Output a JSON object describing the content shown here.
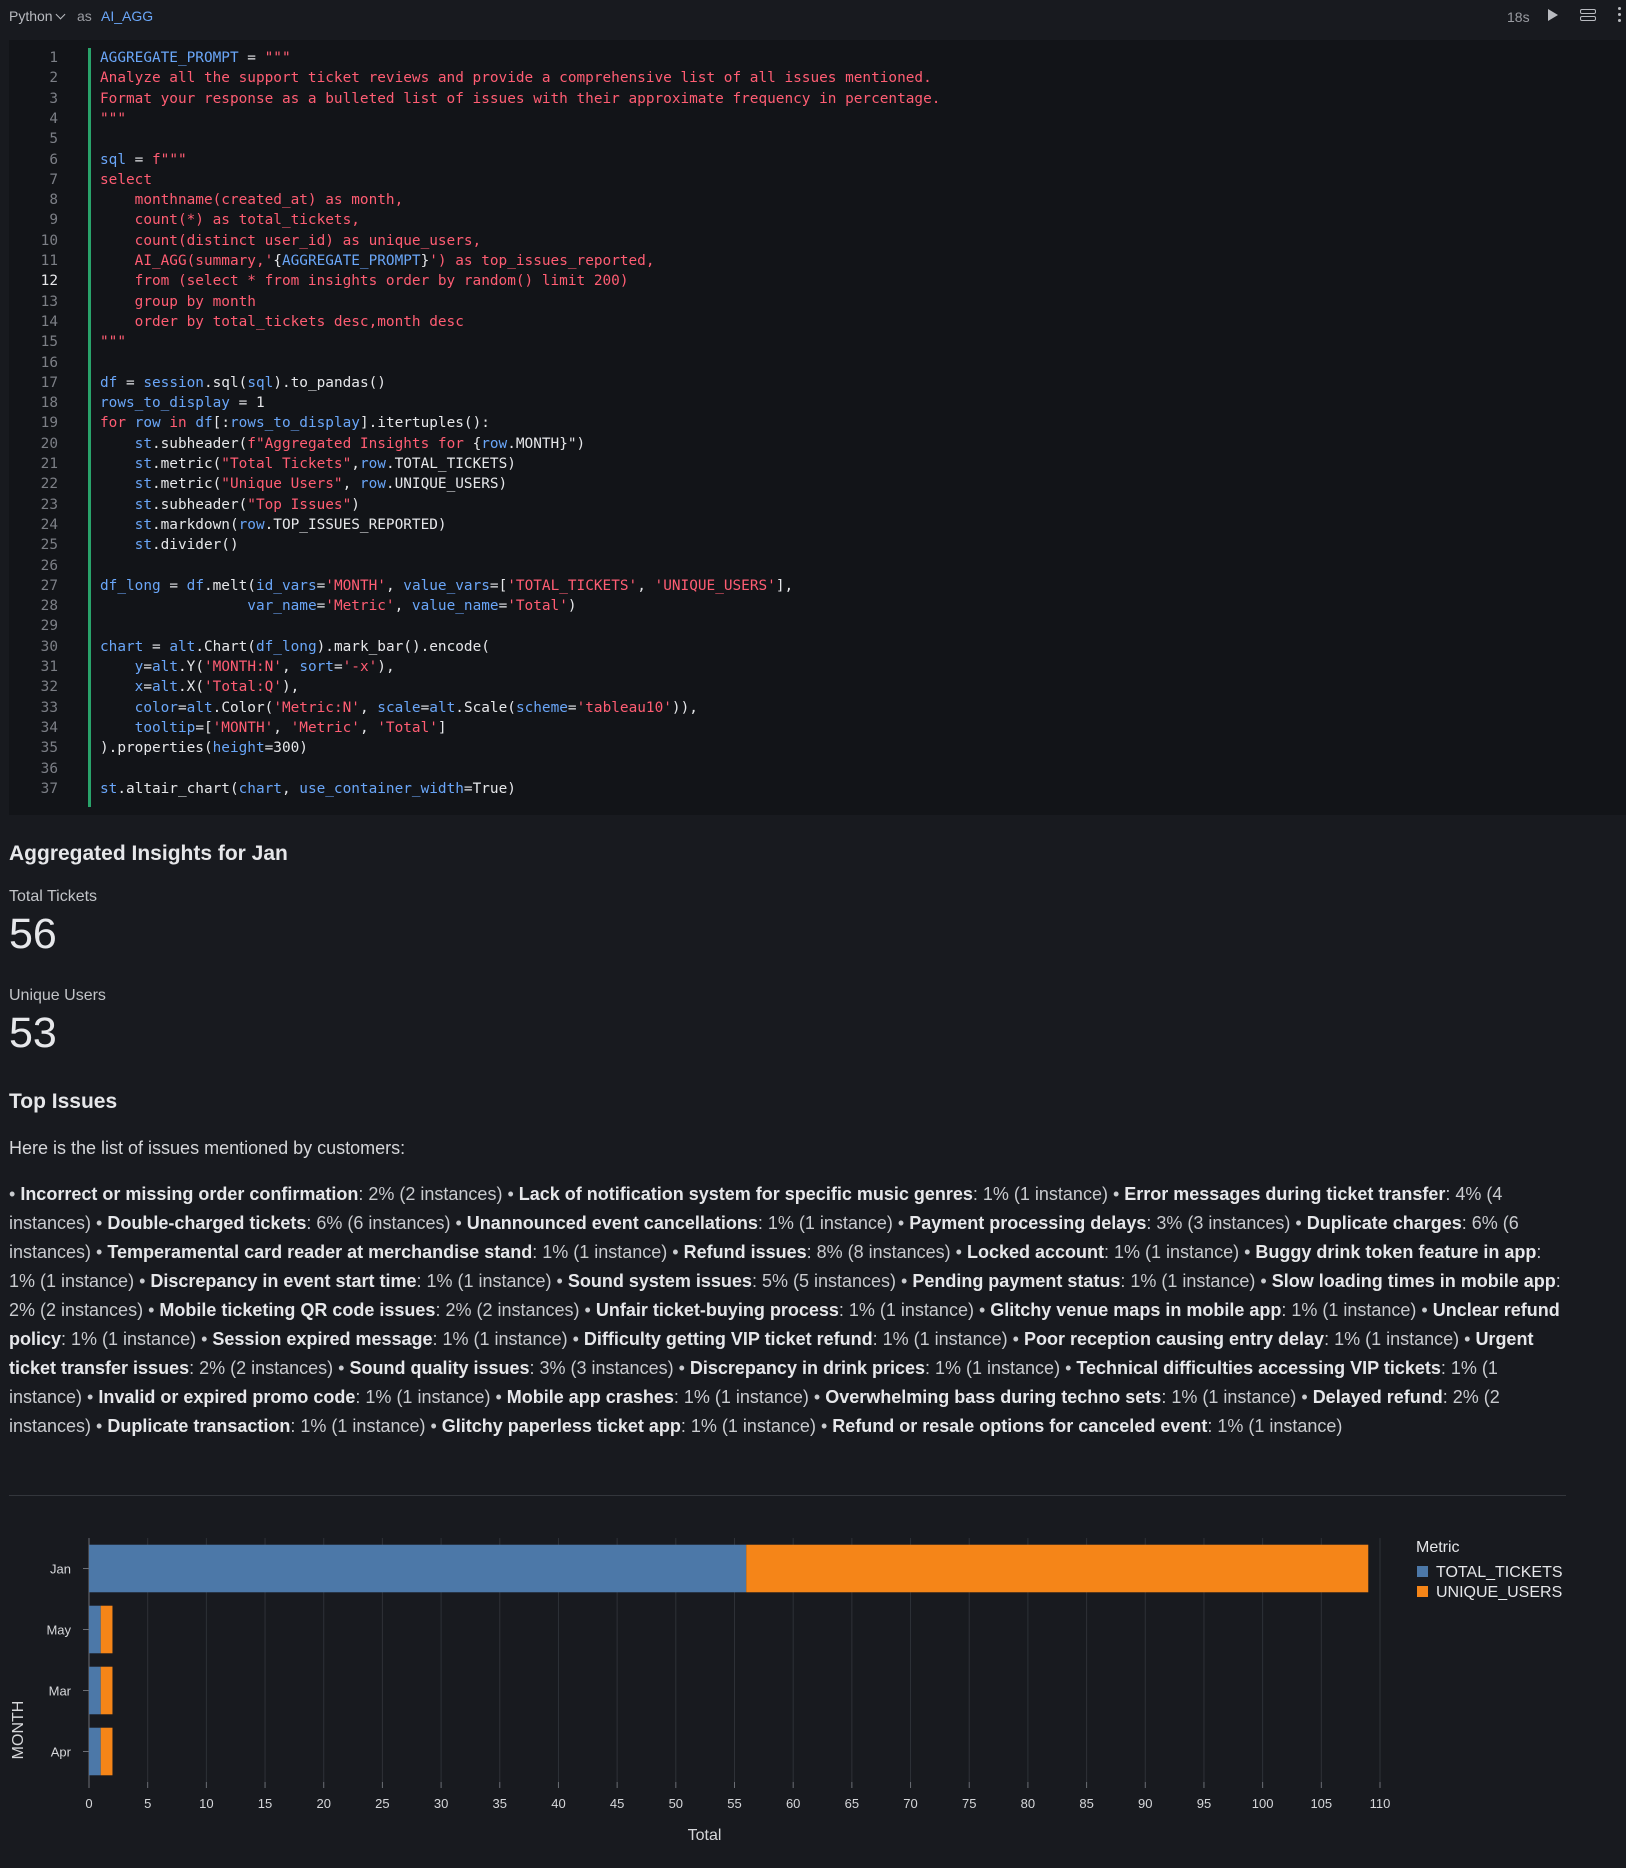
{
  "cell": {
    "language": "Python",
    "as_label": "as",
    "name": "AI_AGG",
    "elapsed": "18s",
    "active_line": 12
  },
  "code": [
    [
      [
        "AGGREGATE_PROMPT",
        "v"
      ],
      [
        " = ",
        "p"
      ],
      [
        "\"\"\"",
        "s"
      ]
    ],
    [
      [
        "Analyze all the support ticket reviews and provide a comprehensive list of all issues mentioned.",
        "s"
      ]
    ],
    [
      [
        "Format your response as a bulleted list of issues with their approximate frequency in percentage.",
        "s"
      ]
    ],
    [
      [
        "\"\"\"",
        "s"
      ]
    ],
    [],
    [
      [
        "sql",
        "v"
      ],
      [
        " = ",
        "p"
      ],
      [
        "f\"\"\"",
        "s"
      ]
    ],
    [
      [
        "select",
        "s"
      ]
    ],
    [
      [
        "    monthname(created_at) as month,",
        "s"
      ]
    ],
    [
      [
        "    count(*) as total_tickets,",
        "s"
      ]
    ],
    [
      [
        "    count(distinct user_id) as unique_users,",
        "s"
      ]
    ],
    [
      [
        "    AI_AGG(summary,'",
        "s"
      ],
      [
        "{",
        "p"
      ],
      [
        "AGGREGATE_PROMPT",
        "v"
      ],
      [
        "}",
        "p"
      ],
      [
        "') as top_issues_reported,",
        "s"
      ]
    ],
    [
      [
        "    from (select * from insights order by random() limit 200)",
        "s"
      ]
    ],
    [
      [
        "    group by month",
        "s"
      ]
    ],
    [
      [
        "    order by total_tickets desc,month desc",
        "s"
      ]
    ],
    [
      [
        "\"\"\"",
        "s"
      ]
    ],
    [],
    [
      [
        "df",
        "v"
      ],
      [
        " = ",
        "p"
      ],
      [
        "session",
        "v"
      ],
      [
        ".sql(",
        "p"
      ],
      [
        "sql",
        "v"
      ],
      [
        ").to_pandas()",
        "p"
      ]
    ],
    [
      [
        "rows_to_display",
        "v"
      ],
      [
        " = ",
        "p"
      ],
      [
        "1",
        "p"
      ]
    ],
    [
      [
        "for",
        "k"
      ],
      [
        " ",
        "p"
      ],
      [
        "row",
        "v"
      ],
      [
        " in ",
        "k"
      ],
      [
        "df",
        "v"
      ],
      [
        "[:",
        "p"
      ],
      [
        "rows_to_display",
        "v"
      ],
      [
        "].itertuples():",
        "p"
      ]
    ],
    [
      [
        "    ",
        "p"
      ],
      [
        "st",
        "v"
      ],
      [
        ".subheader(",
        "p"
      ],
      [
        "f\"Aggregated Insights for ",
        "s"
      ],
      [
        "{",
        "p"
      ],
      [
        "row",
        "v"
      ],
      [
        ".MONTH}\")",
        "p"
      ]
    ],
    [
      [
        "    ",
        "p"
      ],
      [
        "st",
        "v"
      ],
      [
        ".metric(",
        "p"
      ],
      [
        "\"Total Tickets\"",
        "s"
      ],
      [
        ",",
        "p"
      ],
      [
        "row",
        "v"
      ],
      [
        ".TOTAL_TICKETS)",
        "p"
      ]
    ],
    [
      [
        "    ",
        "p"
      ],
      [
        "st",
        "v"
      ],
      [
        ".metric(",
        "p"
      ],
      [
        "\"Unique Users\"",
        "s"
      ],
      [
        ", ",
        "p"
      ],
      [
        "row",
        "v"
      ],
      [
        ".UNIQUE_USERS)",
        "p"
      ]
    ],
    [
      [
        "    ",
        "p"
      ],
      [
        "st",
        "v"
      ],
      [
        ".subheader(",
        "p"
      ],
      [
        "\"Top Issues\"",
        "s"
      ],
      [
        ")",
        "p"
      ]
    ],
    [
      [
        "    ",
        "p"
      ],
      [
        "st",
        "v"
      ],
      [
        ".markdown(",
        "p"
      ],
      [
        "row",
        "v"
      ],
      [
        ".TOP_ISSUES_REPORTED)",
        "p"
      ]
    ],
    [
      [
        "    ",
        "p"
      ],
      [
        "st",
        "v"
      ],
      [
        ".divider()",
        "p"
      ]
    ],
    [],
    [
      [
        "df_long",
        "v"
      ],
      [
        " = ",
        "p"
      ],
      [
        "df",
        "v"
      ],
      [
        ".melt(",
        "p"
      ],
      [
        "id_vars",
        "v"
      ],
      [
        "=",
        "p"
      ],
      [
        "'MONTH'",
        "s"
      ],
      [
        ", ",
        "p"
      ],
      [
        "value_vars",
        "v"
      ],
      [
        "=[",
        "p"
      ],
      [
        "'TOTAL_TICKETS'",
        "s"
      ],
      [
        ", ",
        "p"
      ],
      [
        "'UNIQUE_USERS'",
        "s"
      ],
      [
        "],",
        "p"
      ]
    ],
    [
      [
        "                 ",
        "p"
      ],
      [
        "var_name",
        "v"
      ],
      [
        "=",
        "p"
      ],
      [
        "'Metric'",
        "s"
      ],
      [
        ", ",
        "p"
      ],
      [
        "value_name",
        "v"
      ],
      [
        "=",
        "p"
      ],
      [
        "'Total'",
        "s"
      ],
      [
        ")",
        "p"
      ]
    ],
    [],
    [
      [
        "chart",
        "v"
      ],
      [
        " = ",
        "p"
      ],
      [
        "alt",
        "v"
      ],
      [
        ".Chart(",
        "p"
      ],
      [
        "df_long",
        "v"
      ],
      [
        ").mark_bar().encode(",
        "p"
      ]
    ],
    [
      [
        "    ",
        "p"
      ],
      [
        "y",
        "v"
      ],
      [
        "=",
        "p"
      ],
      [
        "alt",
        "v"
      ],
      [
        ".Y(",
        "p"
      ],
      [
        "'MONTH:N'",
        "s"
      ],
      [
        ", ",
        "p"
      ],
      [
        "sort",
        "v"
      ],
      [
        "=",
        "p"
      ],
      [
        "'-x'",
        "s"
      ],
      [
        "),",
        "p"
      ]
    ],
    [
      [
        "    ",
        "p"
      ],
      [
        "x",
        "v"
      ],
      [
        "=",
        "p"
      ],
      [
        "alt",
        "v"
      ],
      [
        ".X(",
        "p"
      ],
      [
        "'Total:Q'",
        "s"
      ],
      [
        "),",
        "p"
      ]
    ],
    [
      [
        "    ",
        "p"
      ],
      [
        "color",
        "v"
      ],
      [
        "=",
        "p"
      ],
      [
        "alt",
        "v"
      ],
      [
        ".Color(",
        "p"
      ],
      [
        "'Metric:N'",
        "s"
      ],
      [
        ", ",
        "p"
      ],
      [
        "scale",
        "v"
      ],
      [
        "=",
        "p"
      ],
      [
        "alt",
        "v"
      ],
      [
        ".Scale(",
        "p"
      ],
      [
        "scheme",
        "v"
      ],
      [
        "=",
        "p"
      ],
      [
        "'tableau10'",
        "s"
      ],
      [
        ")),",
        "p"
      ]
    ],
    [
      [
        "    ",
        "p"
      ],
      [
        "tooltip",
        "v"
      ],
      [
        "=[",
        "p"
      ],
      [
        "'MONTH'",
        "s"
      ],
      [
        ", ",
        "p"
      ],
      [
        "'Metric'",
        "s"
      ],
      [
        ", ",
        "p"
      ],
      [
        "'Total'",
        "s"
      ],
      [
        "]",
        "p"
      ]
    ],
    [
      [
        ").properties(",
        "p"
      ],
      [
        "height",
        "v"
      ],
      [
        "=",
        "p"
      ],
      [
        "300",
        "p"
      ],
      [
        ")",
        "p"
      ]
    ],
    [],
    [
      [
        "st",
        "v"
      ],
      [
        ".altair_chart(",
        "p"
      ],
      [
        "chart",
        "v"
      ],
      [
        ", ",
        "p"
      ],
      [
        "use_container_width",
        "v"
      ],
      [
        "=",
        "p"
      ],
      [
        "True",
        "p"
      ],
      [
        ")",
        "p"
      ]
    ]
  ],
  "output": {
    "subheader": "Aggregated Insights for Jan",
    "metrics": [
      {
        "label": "Total Tickets",
        "value": "56"
      },
      {
        "label": "Unique Users",
        "value": "53"
      }
    ],
    "top_issues_title": "Top Issues",
    "intro": "Here is the list of issues mentioned by customers:",
    "issues": [
      {
        "name": "Incorrect or missing order confirmation",
        "freq": "2% (2 instances)"
      },
      {
        "name": "Lack of notification system for specific music genres",
        "freq": "1% (1 instance)"
      },
      {
        "name": "Error messages during ticket transfer",
        "freq": "4% (4 instances)"
      },
      {
        "name": "Double-charged tickets",
        "freq": "6% (6 instances)"
      },
      {
        "name": "Unannounced event cancellations",
        "freq": "1% (1 instance)"
      },
      {
        "name": "Payment processing delays",
        "freq": "3% (3 instances)"
      },
      {
        "name": "Duplicate charges",
        "freq": "6% (6 instances)"
      },
      {
        "name": "Temperamental card reader at merchandise stand",
        "freq": "1% (1 instance)"
      },
      {
        "name": "Refund issues",
        "freq": "8% (8 instances)"
      },
      {
        "name": "Locked account",
        "freq": "1% (1 instance)"
      },
      {
        "name": "Buggy drink token feature in app",
        "freq": "1% (1 instance)"
      },
      {
        "name": "Discrepancy in event start time",
        "freq": "1% (1 instance)"
      },
      {
        "name": "Sound system issues",
        "freq": "5% (5 instances)"
      },
      {
        "name": "Pending payment status",
        "freq": "1% (1 instance)"
      },
      {
        "name": "Slow loading times in mobile app",
        "freq": "2% (2 instances)"
      },
      {
        "name": "Mobile ticketing QR code issues",
        "freq": "2% (2 instances)"
      },
      {
        "name": "Unfair ticket-buying process",
        "freq": "1% (1 instance)"
      },
      {
        "name": "Glitchy venue maps in mobile app",
        "freq": "1% (1 instance)"
      },
      {
        "name": "Unclear refund policy",
        "freq": "1% (1 instance)"
      },
      {
        "name": "Session expired message",
        "freq": "1% (1 instance)"
      },
      {
        "name": "Difficulty getting VIP ticket refund",
        "freq": "1% (1 instance)"
      },
      {
        "name": "Poor reception causing entry delay",
        "freq": "1% (1 instance)"
      },
      {
        "name": "Urgent ticket transfer issues",
        "freq": "2% (2 instances)"
      },
      {
        "name": "Sound quality issues",
        "freq": "3% (3 instances)"
      },
      {
        "name": "Discrepancy in drink prices",
        "freq": "1% (1 instance)"
      },
      {
        "name": "Technical difficulties accessing VIP tickets",
        "freq": "1% (1 instance)"
      },
      {
        "name": "Invalid or expired promo code",
        "freq": "1% (1 instance)"
      },
      {
        "name": "Mobile app crashes",
        "freq": "1% (1 instance)"
      },
      {
        "name": "Overwhelming bass during techno sets",
        "freq": "1% (1 instance)"
      },
      {
        "name": "Delayed refund",
        "freq": "2% (2 instances)"
      },
      {
        "name": "Duplicate transaction",
        "freq": "1% (1 instance)"
      },
      {
        "name": "Glitchy paperless ticket app",
        "freq": "1% (1 instance)"
      },
      {
        "name": "Refund or resale options for canceled event",
        "freq": "1% (1 instance)"
      }
    ]
  },
  "colors": {
    "TOTAL_TICKETS": "#4c78a8",
    "UNIQUE_USERS": "#f58518",
    "variable": "#6aa6f8",
    "string": "#ff5d73"
  },
  "chart_data": {
    "type": "bar",
    "orientation": "horizontal-stacked",
    "categories": [
      "Jan",
      "May",
      "Mar",
      "Apr"
    ],
    "series": [
      {
        "name": "TOTAL_TICKETS",
        "values": [
          56,
          1,
          1,
          1
        ]
      },
      {
        "name": "UNIQUE_USERS",
        "values": [
          53,
          1,
          1,
          1
        ]
      }
    ],
    "xlabel": "Total",
    "ylabel": "MONTH",
    "xticks": [
      "0",
      "5",
      "10",
      "15",
      "20",
      "25",
      "30",
      "35",
      "40",
      "45",
      "50",
      "55",
      "60",
      "65",
      "70",
      "75",
      "80",
      "85",
      "90",
      "95",
      "100",
      "105",
      "110"
    ],
    "xlim": [
      0,
      110
    ],
    "grid": true,
    "legend_title": "Metric",
    "legend_position": "right"
  }
}
